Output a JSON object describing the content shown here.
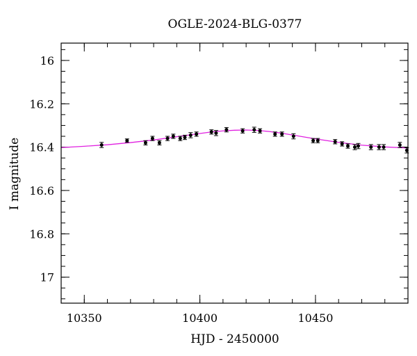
{
  "chart_data": {
    "type": "scatter",
    "title": "OGLE-2024-BLG-0377",
    "xlabel": "HJD - 2450000",
    "ylabel": "I magnitude",
    "xlim": [
      10340,
      10490
    ],
    "ylim": [
      17.12,
      15.92
    ],
    "y_inverted": true,
    "x_ticks": [
      10350,
      10400,
      10450
    ],
    "y_ticks": [
      16,
      16.2,
      16.4,
      16.6,
      16.8,
      17
    ],
    "y_tick_labels": [
      "16",
      "16.2",
      "16.4",
      "16.6",
      "16.8",
      "17"
    ],
    "x_minor_step": 10,
    "y_minor_step": 0.05,
    "grid": false,
    "colors": {
      "points": "#000000",
      "model": "#e020e0",
      "frame": "#000000"
    },
    "series": [
      {
        "kind": "points",
        "x": [
          10357.5,
          10368.5,
          10376.5,
          10379.5,
          10382.5,
          10386.0,
          10388.5,
          10391.5,
          10393.5,
          10396.0,
          10398.5,
          10405.0,
          10407.0,
          10411.5,
          10418.5,
          10423.5,
          10426.0,
          10432.5,
          10435.5,
          10440.5,
          10449.0,
          10451.0,
          10458.5,
          10461.5,
          10464.0,
          10467.0,
          10468.5,
          10474.0,
          10477.5,
          10479.5,
          10486.5,
          10489.5
        ],
        "y": [
          16.39,
          16.37,
          16.38,
          16.36,
          16.38,
          16.36,
          16.35,
          16.36,
          16.355,
          16.345,
          16.34,
          16.33,
          16.335,
          16.32,
          16.325,
          16.32,
          16.325,
          16.34,
          16.34,
          16.35,
          16.37,
          16.37,
          16.375,
          16.385,
          16.395,
          16.4,
          16.395,
          16.4,
          16.4,
          16.4,
          16.39,
          16.415
        ],
        "yerr": [
          0.012,
          0.008,
          0.01,
          0.01,
          0.01,
          0.01,
          0.01,
          0.01,
          0.01,
          0.012,
          0.01,
          0.01,
          0.012,
          0.01,
          0.01,
          0.012,
          0.01,
          0.01,
          0.01,
          0.012,
          0.01,
          0.01,
          0.01,
          0.01,
          0.01,
          0.012,
          0.012,
          0.012,
          0.012,
          0.012,
          0.012,
          0.012
        ]
      },
      {
        "kind": "line",
        "x": [
          10340,
          10350,
          10360,
          10370,
          10380,
          10390,
          10400,
          10405,
          10410,
          10415,
          10420,
          10425,
          10430,
          10435,
          10440,
          10450,
          10460,
          10470,
          10480,
          10490
        ],
        "y": [
          16.402,
          16.396,
          16.389,
          16.379,
          16.367,
          16.352,
          16.337,
          16.33,
          16.325,
          16.322,
          16.321,
          16.323,
          16.328,
          16.335,
          16.344,
          16.362,
          16.378,
          16.391,
          16.399,
          16.404
        ]
      }
    ]
  }
}
